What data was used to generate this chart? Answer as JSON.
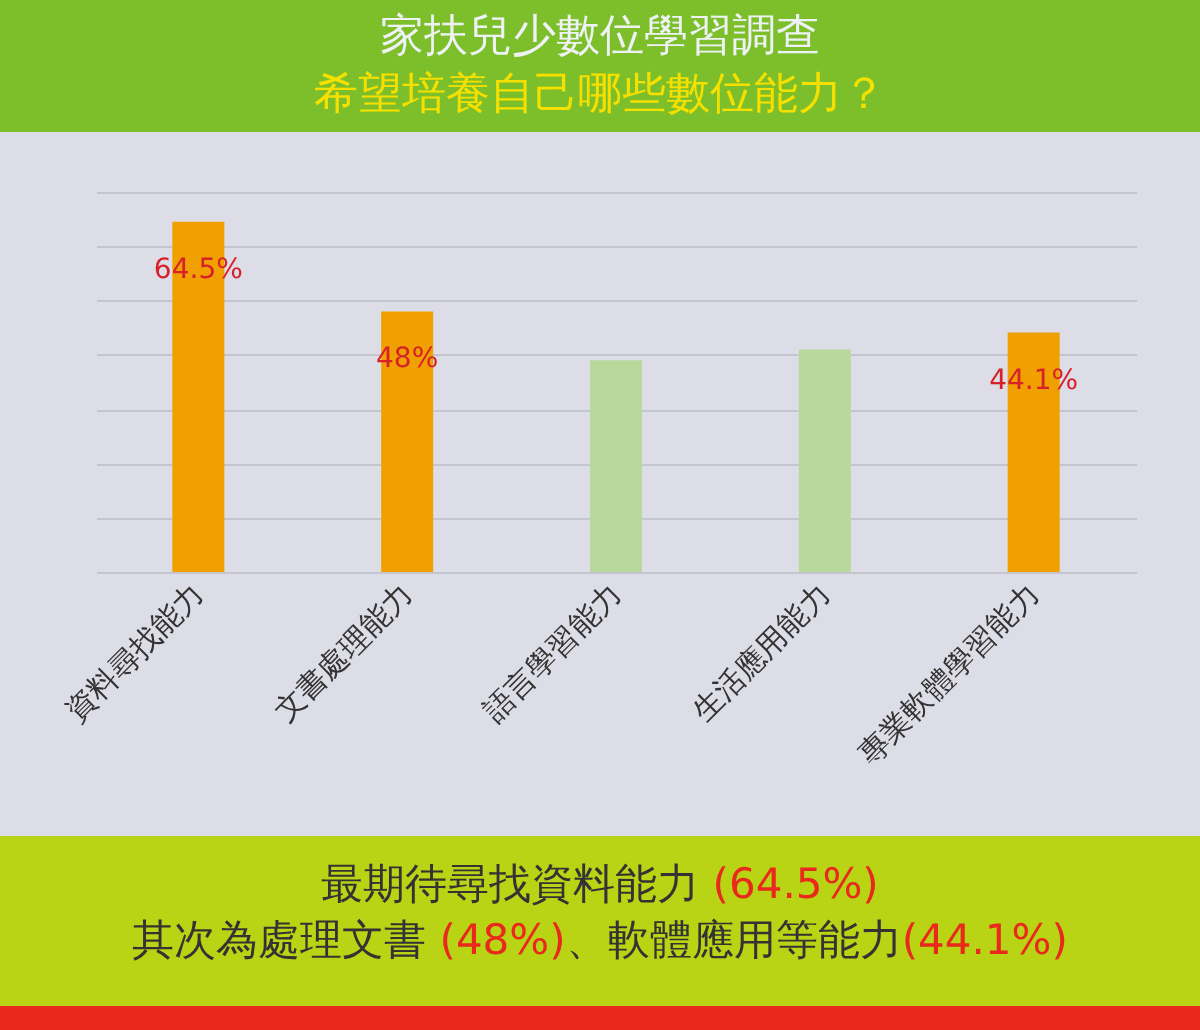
{
  "chart_data": {
    "type": "bar",
    "title": "家扶兒少數位學習調查",
    "subtitle": "希望培養自己哪些數位能力？",
    "categories": [
      "資料尋找能力",
      "文書處理能力",
      "語言學習能力",
      "生活應用能力",
      "專業軟體學習能力"
    ],
    "values": [
      64.5,
      48,
      39,
      41,
      44.1
    ],
    "colors": [
      "#f0a000",
      "#f0a000",
      "#b8d89c",
      "#b8d89c",
      "#f0a000"
    ],
    "value_labels": [
      "64.5%",
      "48%",
      null,
      null,
      "44.1%"
    ],
    "ylim": [
      0,
      70
    ],
    "yticks": [
      {
        "value": 0,
        "label": null
      },
      {
        "value": 10,
        "label": null
      },
      {
        "value": 20,
        "label": null
      },
      {
        "value": 30,
        "label": null
      },
      {
        "value": 40,
        "label": null
      },
      {
        "value": 50,
        "label": null
      },
      {
        "value": 60,
        "label": null
      },
      {
        "value": 70,
        "label": null
      }
    ],
    "tick_labels": "x",
    "grid": "y",
    "annotations": [
      "最期待尋找資料能力 (64.5%)",
      "其次為處理文書 (48%)、軟體應用等能力(44.1%)"
    ]
  }
}
